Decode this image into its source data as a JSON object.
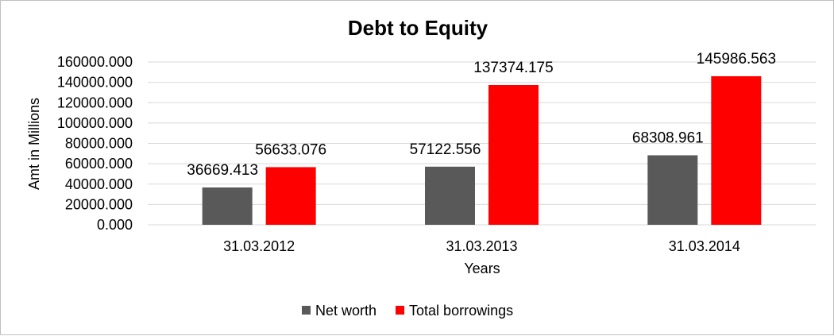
{
  "chart_data": {
    "type": "bar",
    "title": "Debt to Equity",
    "xlabel": "Years",
    "ylabel": "Amt in Millions",
    "categories": [
      "31.03.2012",
      "31.03.2013",
      "31.03.2014"
    ],
    "series": [
      {
        "name": "Net worth",
        "color": "#595959",
        "values": [
          36669.413,
          57122.556,
          68308.961
        ],
        "labels": [
          "36669.413",
          "57122.556",
          "68308.961"
        ]
      },
      {
        "name": "Total borrowings",
        "color": "#ff0000",
        "values": [
          56633.076,
          137374.175,
          145986.563
        ],
        "labels": [
          "56633.076",
          "137374.175",
          "145986.563"
        ]
      }
    ],
    "ylim": [
      0,
      160000
    ],
    "yticks": [
      "0.000",
      "20000.000",
      "40000.000",
      "60000.000",
      "80000.000",
      "100000.000",
      "120000.000",
      "140000.000",
      "160000.000"
    ],
    "grid": true,
    "legend_position": "bottom"
  }
}
